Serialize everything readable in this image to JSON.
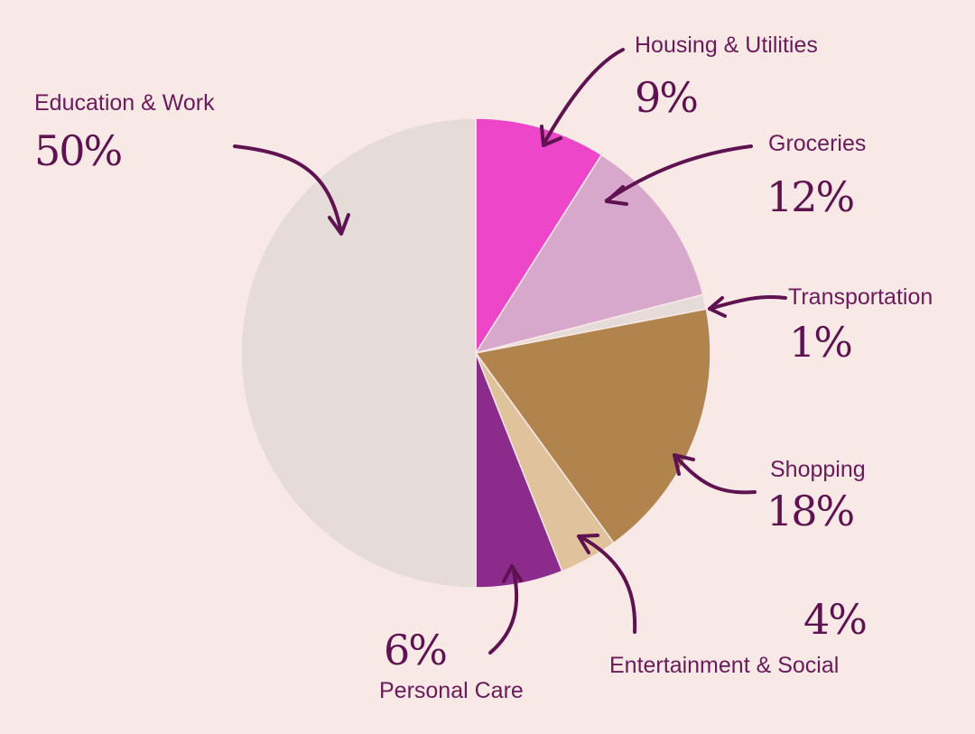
{
  "chart_data": {
    "type": "pie",
    "title": "",
    "start_angle_deg": 0,
    "direction": "clockwise",
    "slices": [
      {
        "label": "Housing & Utilities",
        "value": 9,
        "pct_label": "9%",
        "color": "#ee46c8"
      },
      {
        "label": "Groceries",
        "value": 12,
        "pct_label": "12%",
        "color": "#d7a8cb"
      },
      {
        "label": "Transportation",
        "value": 1,
        "pct_label": "1%",
        "color": "#e5dbd8"
      },
      {
        "label": "Shopping",
        "value": 18,
        "pct_label": "18%",
        "color": "#b0844c"
      },
      {
        "label": "Entertainment & Social",
        "value": 4,
        "pct_label": "4%",
        "color": "#e0c29c"
      },
      {
        "label": "Personal Care",
        "value": 6,
        "pct_label": "6%",
        "color": "#8b2b8b"
      },
      {
        "label": "Education & Work",
        "value": 50,
        "pct_label": "50%",
        "color": "#e5dbd8"
      }
    ],
    "legend": "none (labels placed beside slices with arrows)"
  }
}
